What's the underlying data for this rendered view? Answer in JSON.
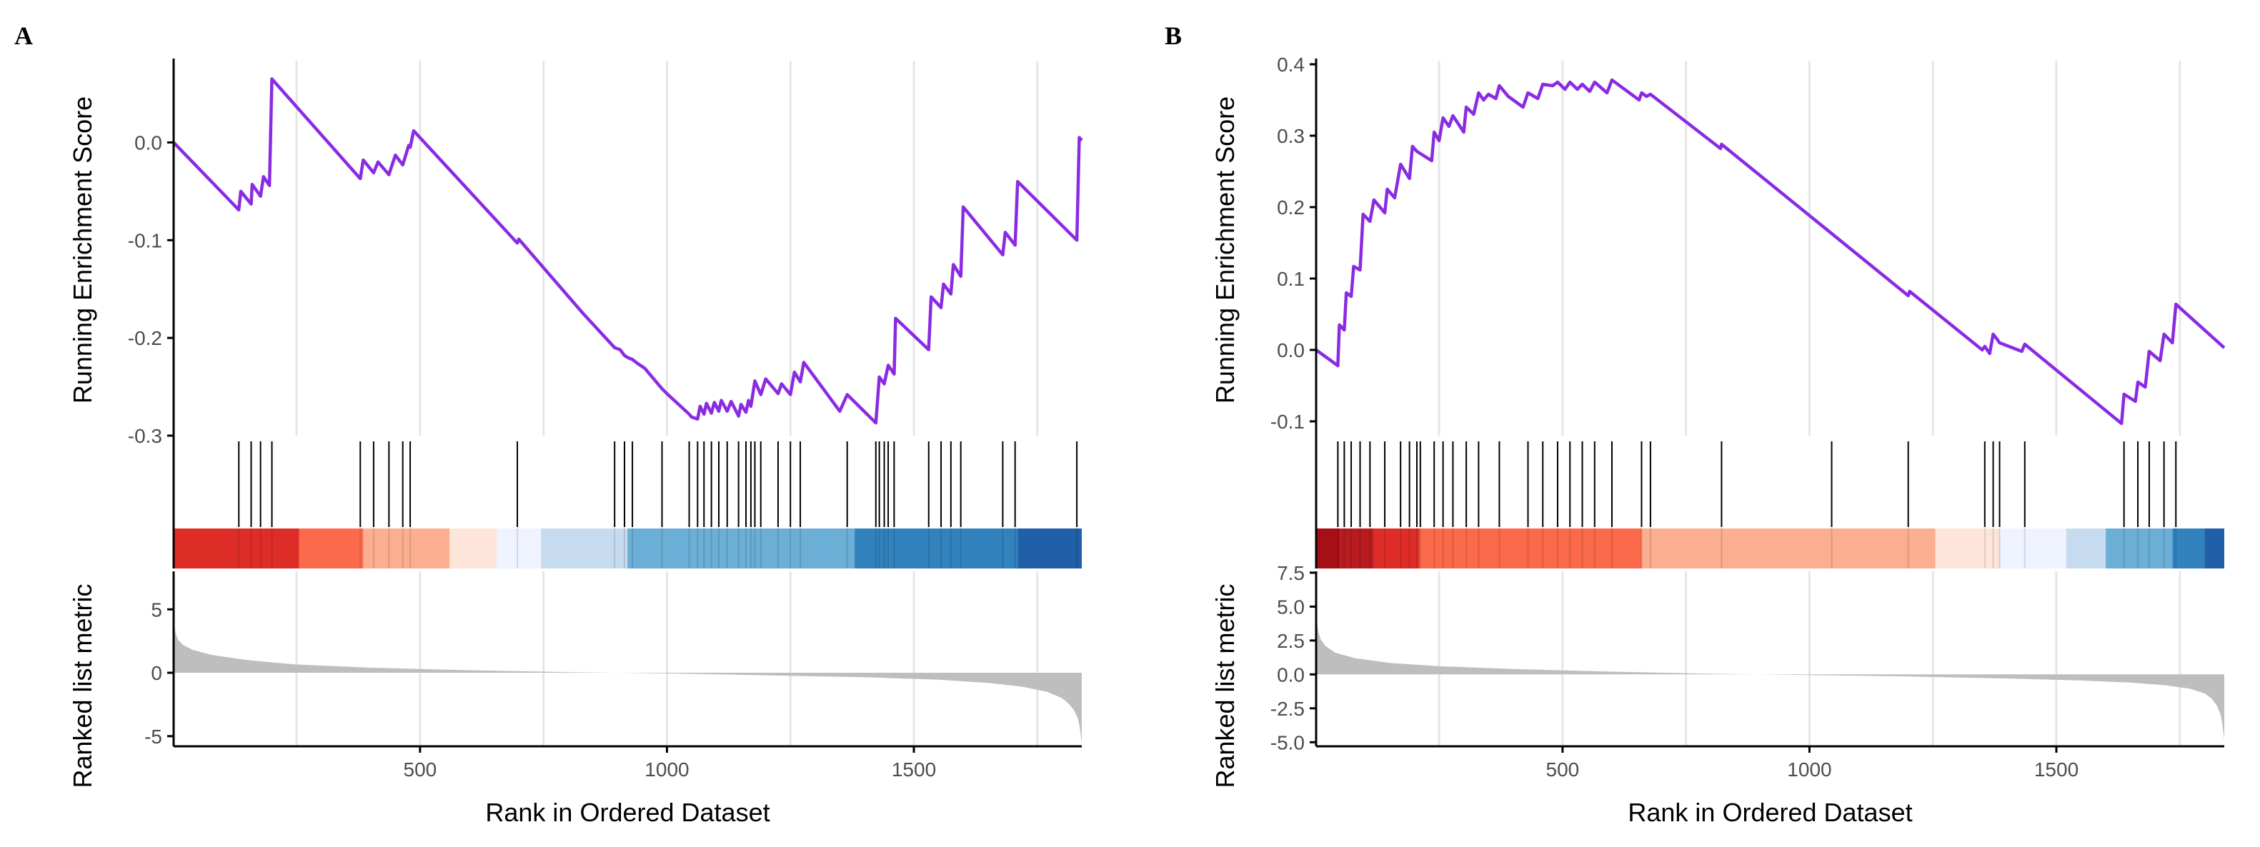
{
  "colors": {
    "curve": "#8A2BE2",
    "grid": "#e6e6e6",
    "axis": "#000000",
    "hit": "#000000",
    "metric_fill": "#bebebe",
    "heat": [
      "#a50f15",
      "#de2d26",
      "#fb6a4a",
      "#fcae91",
      "#fee5d9",
      "#eff3ff",
      "#c6dbef",
      "#9ecae1",
      "#6baed6",
      "#3182bd",
      "#08519c"
    ]
  },
  "chart_data": [
    {
      "type": "line",
      "panel_label": "A",
      "title": "",
      "ylabel_top": "Running Enrichment Score",
      "ylabel_bottom": "Ranked list metric",
      "xlabel": "Rank in Ordered Dataset",
      "xlim": [
        1,
        1840
      ],
      "xticks": [
        500,
        1000,
        1500
      ],
      "xtick_labels": [
        "500",
        "1000",
        "1500"
      ],
      "es_ylim": [
        -0.3,
        0.08
      ],
      "es_yticks": [
        0.0,
        -0.1,
        -0.2,
        -0.3
      ],
      "es_ytick_labels": [
        "0.0",
        "-0.1",
        "-0.2",
        "-0.3"
      ],
      "running_es": {
        "x": [
          1,
          133,
          137,
          158,
          160,
          177,
          183,
          195,
          200,
          379,
          385,
          406,
          415,
          437,
          450,
          465,
          477,
          480,
          487,
          697,
          700,
          830,
          894,
          905,
          914,
          920,
          930,
          940,
          955,
          990,
          1000,
          1045,
          1050,
          1062,
          1067,
          1075,
          1080,
          1090,
          1096,
          1105,
          1110,
          1122,
          1130,
          1145,
          1150,
          1160,
          1165,
          1170,
          1178,
          1190,
          1200,
          1225,
          1232,
          1250,
          1258,
          1270,
          1277,
          1350,
          1365,
          1423,
          1430,
          1440,
          1448,
          1460,
          1463,
          1530,
          1535,
          1555,
          1560,
          1575,
          1580,
          1595,
          1600,
          1680,
          1685,
          1705,
          1710,
          1830,
          1835,
          1840
        ],
        "y": [
          0.0,
          -0.069,
          -0.05,
          -0.063,
          -0.043,
          -0.055,
          -0.035,
          -0.044,
          0.065,
          -0.037,
          -0.018,
          -0.031,
          -0.02,
          -0.033,
          -0.013,
          -0.023,
          -0.003,
          -0.005,
          0.012,
          -0.103,
          -0.099,
          -0.175,
          -0.21,
          -0.212,
          -0.218,
          -0.22,
          -0.222,
          -0.226,
          -0.231,
          -0.252,
          -0.257,
          -0.278,
          -0.281,
          -0.283,
          -0.27,
          -0.278,
          -0.267,
          -0.277,
          -0.266,
          -0.275,
          -0.264,
          -0.275,
          -0.265,
          -0.28,
          -0.268,
          -0.276,
          -0.264,
          -0.27,
          -0.244,
          -0.258,
          -0.242,
          -0.257,
          -0.247,
          -0.258,
          -0.235,
          -0.245,
          -0.225,
          -0.275,
          -0.258,
          -0.287,
          -0.24,
          -0.247,
          -0.228,
          -0.237,
          -0.18,
          -0.212,
          -0.158,
          -0.169,
          -0.145,
          -0.155,
          -0.125,
          -0.137,
          -0.066,
          -0.115,
          -0.092,
          -0.105,
          -0.04,
          -0.1,
          0.005,
          0.002
        ]
      },
      "hits": [
        133,
        158,
        177,
        200,
        379,
        406,
        437,
        465,
        480,
        697,
        894,
        914,
        930,
        990,
        1045,
        1062,
        1075,
        1090,
        1105,
        1122,
        1145,
        1160,
        1170,
        1178,
        1190,
        1225,
        1250,
        1270,
        1365,
        1423,
        1430,
        1440,
        1448,
        1460,
        1530,
        1555,
        1575,
        1595,
        1680,
        1705,
        1830
      ],
      "heat_bands": [
        {
          "start": 1,
          "end": 255,
          "color": "#de2d26"
        },
        {
          "start": 255,
          "end": 385,
          "color": "#fb6a4a"
        },
        {
          "start": 385,
          "end": 560,
          "color": "#fcae91"
        },
        {
          "start": 560,
          "end": 655,
          "color": "#fee5d9"
        },
        {
          "start": 655,
          "end": 745,
          "color": "#eff3ff"
        },
        {
          "start": 745,
          "end": 920,
          "color": "#c6dbef"
        },
        {
          "start": 920,
          "end": 1380,
          "color": "#6baed6"
        },
        {
          "start": 1380,
          "end": 1710,
          "color": "#3182bd"
        },
        {
          "start": 1710,
          "end": 1840,
          "color": "#2060a8"
        }
      ],
      "metric_ylim": [
        -5.8,
        8.0
      ],
      "metric_yticks": [
        5,
        0,
        -5
      ],
      "metric_ytick_labels": [
        "5",
        "0",
        "-5"
      ],
      "metric_curve": {
        "x": [
          1,
          5,
          10,
          20,
          40,
          80,
          150,
          250,
          400,
          600,
          800,
          1000,
          1200,
          1400,
          1550,
          1650,
          1720,
          1770,
          1800,
          1815,
          1825,
          1832,
          1836,
          1840
        ],
        "y": [
          4.2,
          3.1,
          2.6,
          2.2,
          1.8,
          1.4,
          1.0,
          0.65,
          0.4,
          0.2,
          0.05,
          -0.05,
          -0.2,
          -0.35,
          -0.55,
          -0.8,
          -1.1,
          -1.5,
          -2.0,
          -2.5,
          -3.0,
          -3.6,
          -4.3,
          -5.5
        ]
      }
    },
    {
      "type": "line",
      "panel_label": "B",
      "title": "",
      "ylabel_top": "Running Enrichment Score",
      "ylabel_bottom": "Ranked list metric",
      "xlabel": "Rank in Ordered Dataset",
      "xlim": [
        1,
        1840
      ],
      "xticks": [
        500,
        1000,
        1500
      ],
      "xtick_labels": [
        "500",
        "1000",
        "1500"
      ],
      "es_ylim": [
        -0.12,
        0.4
      ],
      "es_yticks": [
        0.4,
        0.3,
        0.2,
        0.1,
        0.0,
        -0.1
      ],
      "es_ytick_labels": [
        "0.4",
        "0.3",
        "0.2",
        "0.1",
        "0.0",
        "-0.1"
      ],
      "running_es": {
        "x": [
          1,
          45,
          48,
          58,
          62,
          72,
          77,
          90,
          96,
          110,
          118,
          140,
          145,
          160,
          172,
          190,
          196,
          205,
          212,
          235,
          240,
          250,
          258,
          270,
          278,
          300,
          305,
          320,
          330,
          340,
          350,
          365,
          372,
          390,
          400,
          420,
          430,
          450,
          460,
          480,
          490,
          505,
          515,
          530,
          540,
          555,
          565,
          590,
          600,
          655,
          660,
          670,
          678,
          820,
          822,
          1200,
          1203,
          1350,
          1355,
          1365,
          1372,
          1380,
          1385,
          1430,
          1436,
          1632,
          1637,
          1660,
          1665,
          1680,
          1688,
          1710,
          1718,
          1735,
          1742,
          1840
        ],
        "y": [
          0.0,
          -0.022,
          0.035,
          0.028,
          0.08,
          0.075,
          0.117,
          0.112,
          0.19,
          0.18,
          0.21,
          0.192,
          0.225,
          0.213,
          0.26,
          0.24,
          0.285,
          0.278,
          0.275,
          0.265,
          0.305,
          0.293,
          0.325,
          0.313,
          0.328,
          0.305,
          0.34,
          0.33,
          0.36,
          0.35,
          0.358,
          0.352,
          0.37,
          0.355,
          0.35,
          0.34,
          0.36,
          0.352,
          0.372,
          0.37,
          0.375,
          0.365,
          0.375,
          0.365,
          0.372,
          0.362,
          0.375,
          0.36,
          0.378,
          0.35,
          0.36,
          0.355,
          0.358,
          0.282,
          0.288,
          0.076,
          0.082,
          0.0,
          0.005,
          -0.005,
          0.022,
          0.015,
          0.01,
          -0.002,
          0.008,
          -0.103,
          -0.062,
          -0.072,
          -0.045,
          -0.052,
          -0.002,
          -0.015,
          0.022,
          0.01,
          0.064,
          0.003
        ]
      },
      "hits": [
        45,
        58,
        72,
        90,
        110,
        140,
        172,
        190,
        205,
        212,
        240,
        258,
        278,
        305,
        330,
        372,
        430,
        460,
        490,
        515,
        540,
        565,
        600,
        660,
        678,
        822,
        1045,
        1200,
        1355,
        1372,
        1385,
        1436,
        1637,
        1665,
        1688,
        1718,
        1742
      ],
      "heat_bands": [
        {
          "start": 1,
          "end": 48,
          "color": "#a50f15"
        },
        {
          "start": 48,
          "end": 118,
          "color": "#b81c1f"
        },
        {
          "start": 118,
          "end": 210,
          "color": "#de2d26"
        },
        {
          "start": 210,
          "end": 660,
          "color": "#fb6a4a"
        },
        {
          "start": 660,
          "end": 1255,
          "color": "#fcae91"
        },
        {
          "start": 1255,
          "end": 1385,
          "color": "#fee5d9"
        },
        {
          "start": 1385,
          "end": 1520,
          "color": "#eff3ff"
        },
        {
          "start": 1520,
          "end": 1600,
          "color": "#c6dbef"
        },
        {
          "start": 1600,
          "end": 1735,
          "color": "#6baed6"
        },
        {
          "start": 1735,
          "end": 1800,
          "color": "#3182bd"
        },
        {
          "start": 1800,
          "end": 1840,
          "color": "#2060a8"
        }
      ],
      "metric_ylim": [
        -5.3,
        7.6
      ],
      "metric_yticks": [
        7.5,
        5.0,
        2.5,
        0.0,
        -2.5,
        -5.0
      ],
      "metric_ytick_labels": [
        "7.5",
        "5.0",
        "2.5",
        "0.0",
        "-2.5",
        "-5.0"
      ],
      "metric_curve": {
        "x": [
          1,
          5,
          10,
          20,
          40,
          80,
          150,
          250,
          400,
          600,
          800,
          1000,
          1200,
          1400,
          1550,
          1650,
          1720,
          1770,
          1800,
          1815,
          1825,
          1832,
          1836,
          1840
        ],
        "y": [
          4.5,
          3.2,
          2.6,
          2.1,
          1.6,
          1.2,
          0.85,
          0.6,
          0.4,
          0.2,
          0.05,
          -0.05,
          -0.15,
          -0.3,
          -0.45,
          -0.6,
          -0.8,
          -1.05,
          -1.4,
          -1.8,
          -2.3,
          -2.9,
          -3.6,
          -4.8
        ]
      }
    }
  ]
}
